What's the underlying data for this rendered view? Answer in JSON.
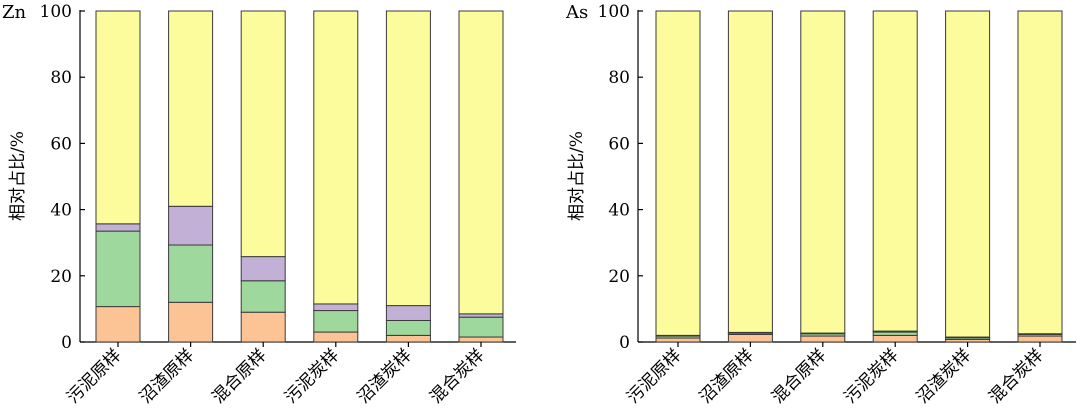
{
  "colors": {
    "seg1": "#FCC494",
    "seg2": "#9ED89C",
    "seg3": "#C3B0D6",
    "seg4": "#FCFC9C",
    "stroke": "#3a3a3a"
  },
  "chart_data": [
    {
      "type": "bar",
      "stacked": true,
      "title": "Zn",
      "xlabel": "",
      "ylabel": "相对占比/%",
      "ylim": [
        0,
        100
      ],
      "yticks": [
        "0",
        "20",
        "40",
        "60",
        "80",
        "100"
      ],
      "categories": [
        "污泥原样",
        "沼渣原样",
        "混合原样",
        "污泥炭样",
        "沼渣炭样",
        "混合炭样"
      ],
      "series": [
        {
          "values": [
            10.7,
            12.0,
            9.0,
            3.0,
            2.0,
            1.5
          ]
        },
        {
          "values": [
            22.8,
            17.3,
            9.5,
            6.5,
            4.5,
            6.0
          ]
        },
        {
          "values": [
            2.2,
            11.7,
            7.3,
            2.0,
            4.5,
            1.0
          ]
        },
        {
          "values": [
            64.3,
            59.0,
            74.2,
            88.5,
            89.0,
            91.5
          ]
        }
      ]
    },
    {
      "type": "bar",
      "stacked": true,
      "title": "As",
      "xlabel": "",
      "ylabel": "相对占比/%",
      "ylim": [
        0,
        100
      ],
      "yticks": [
        "0",
        "20",
        "40",
        "60",
        "80",
        "100"
      ],
      "categories": [
        "污泥原样",
        "沼渣原样",
        "混合原样",
        "污泥炭样",
        "沼渣炭样",
        "混合炭样"
      ],
      "series": [
        {
          "values": [
            1.2,
            2.3,
            1.8,
            2.0,
            0.8,
            1.8
          ]
        },
        {
          "values": [
            0.6,
            0.4,
            0.7,
            1.0,
            0.5,
            0.5
          ]
        },
        {
          "values": [
            0.2,
            0.2,
            0.2,
            0.3,
            0.2,
            0.2
          ]
        },
        {
          "values": [
            98.0,
            97.1,
            97.3,
            96.7,
            98.5,
            97.5
          ]
        }
      ]
    }
  ]
}
